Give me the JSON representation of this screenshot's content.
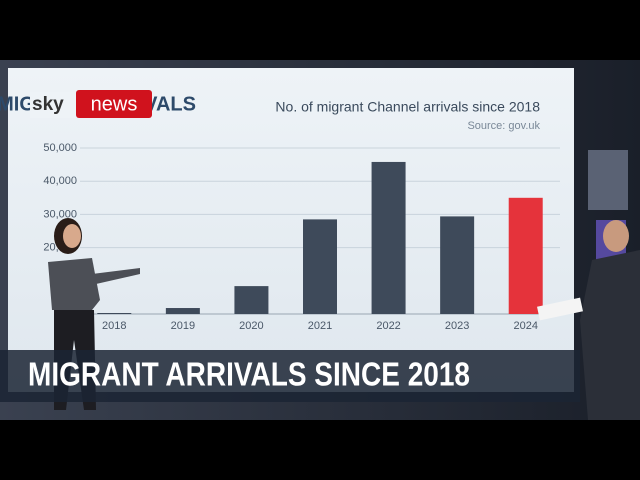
{
  "chart_data": {
    "type": "bar",
    "header": "MIGRANT ARRIVALS",
    "logo": "news",
    "title": "No. of migrant Channel arrivals since 2018",
    "subtitle": "Source: gov.uk",
    "caption": "MIGRANT ARRIVALS SINCE 2018",
    "categories": [
      "2018",
      "2019",
      "2020",
      "2021",
      "2022",
      "2023",
      "2024"
    ],
    "values": [
      300,
      1800,
      8400,
      28500,
      45800,
      29400,
      35000
    ],
    "colors": [
      "#3e4a5a",
      "#3e4a5a",
      "#3e4a5a",
      "#3e4a5a",
      "#3e4a5a",
      "#3e4a5a",
      "#e5333b"
    ],
    "ylim": [
      0,
      50000
    ],
    "yticks": [
      {
        "value": 20000,
        "label": "20,000"
      },
      {
        "value": 30000,
        "label": "30,000"
      },
      {
        "value": 40000,
        "label": "40,000"
      },
      {
        "value": 50000,
        "label": "50,000"
      }
    ],
    "grid": true
  }
}
